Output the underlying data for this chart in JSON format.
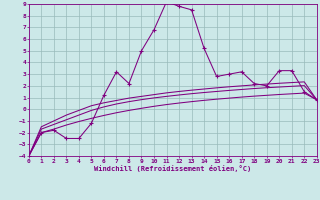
{
  "xlabel": "Windchill (Refroidissement éolien,°C)",
  "bg_color": "#cce8e8",
  "line_color": "#800080",
  "grid_color": "#99bbbb",
  "xmin": 0,
  "xmax": 23,
  "ymin": -4,
  "ymax": 9,
  "x_ticks": [
    0,
    1,
    2,
    3,
    4,
    5,
    6,
    7,
    8,
    9,
    10,
    11,
    12,
    13,
    14,
    15,
    16,
    17,
    18,
    19,
    20,
    21,
    22,
    23
  ],
  "y_ticks": [
    -4,
    -3,
    -2,
    -1,
    0,
    1,
    2,
    3,
    4,
    5,
    6,
    7,
    8,
    9
  ],
  "line1_x": [
    0,
    1,
    2,
    3,
    4,
    5,
    6,
    7,
    8,
    9,
    10,
    11,
    12,
    13,
    14,
    15,
    16,
    17,
    18,
    19,
    20,
    21,
    22,
    23
  ],
  "line1_y": [
    -4,
    -2.0,
    -1.8,
    -2.5,
    -2.5,
    -1.2,
    1.2,
    3.2,
    2.2,
    5.0,
    6.8,
    9.2,
    8.8,
    8.5,
    5.2,
    2.8,
    3.0,
    3.2,
    2.2,
    2.0,
    3.3,
    3.3,
    1.5,
    0.8
  ],
  "line2_x": [
    0,
    1,
    2,
    3,
    4,
    5,
    6,
    7,
    8,
    9,
    10,
    11,
    12,
    13,
    14,
    15,
    16,
    17,
    18,
    19,
    20,
    21,
    22,
    23
  ],
  "line2_y": [
    -4,
    -1.5,
    -1.0,
    -0.5,
    -0.1,
    0.3,
    0.55,
    0.75,
    0.95,
    1.1,
    1.25,
    1.4,
    1.52,
    1.63,
    1.73,
    1.83,
    1.92,
    2.0,
    2.08,
    2.15,
    2.22,
    2.28,
    2.34,
    0.8
  ],
  "line3_x": [
    0,
    1,
    2,
    3,
    4,
    5,
    6,
    7,
    8,
    9,
    10,
    11,
    12,
    13,
    14,
    15,
    16,
    17,
    18,
    19,
    20,
    21,
    22,
    23
  ],
  "line3_y": [
    -4,
    -1.7,
    -1.3,
    -0.9,
    -0.5,
    -0.1,
    0.2,
    0.45,
    0.65,
    0.82,
    0.97,
    1.1,
    1.22,
    1.33,
    1.43,
    1.52,
    1.61,
    1.69,
    1.77,
    1.84,
    1.9,
    1.96,
    2.02,
    0.8
  ],
  "line4_x": [
    0,
    1,
    2,
    3,
    4,
    5,
    6,
    7,
    8,
    9,
    10,
    11,
    12,
    13,
    14,
    15,
    16,
    17,
    18,
    19,
    20,
    21,
    22,
    23
  ],
  "line4_y": [
    -4,
    -2.0,
    -1.7,
    -1.35,
    -1.05,
    -0.78,
    -0.53,
    -0.3,
    -0.1,
    0.08,
    0.25,
    0.4,
    0.53,
    0.65,
    0.76,
    0.86,
    0.95,
    1.04,
    1.12,
    1.19,
    1.26,
    1.32,
    1.38,
    0.8
  ]
}
